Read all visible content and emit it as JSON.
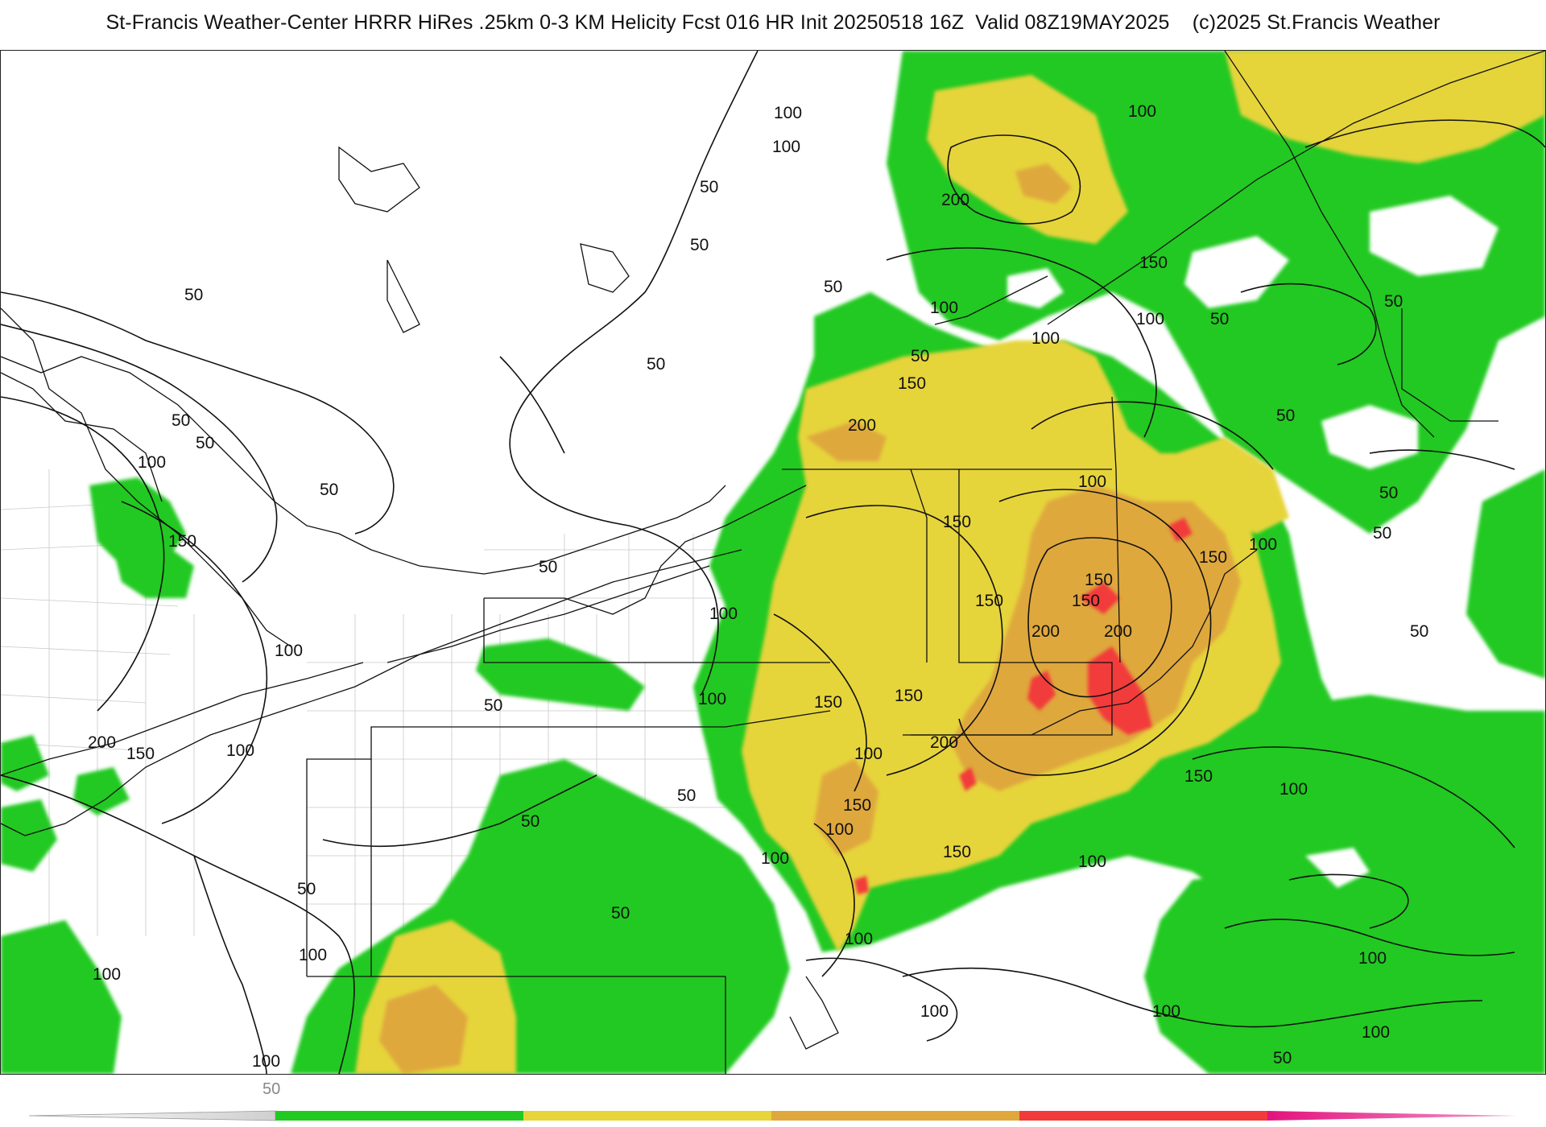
{
  "title": "St-Francis Weather-Center HRRR HiRes .25km 0-3 KM Helicity Fcst 016 HR Init 20250518 16Z  Valid 08Z19MAY2025    (c)2025 St.Francis Weather",
  "colors": {
    "band_50_100": "#22c922",
    "band_100_150": "#e6d43a",
    "band_150_200": "#dfa83c",
    "band_200_250": "#f23a3a",
    "band_250_plus": "#e2127e",
    "low_band_fade": "#d7d7d7"
  },
  "colorbar": {
    "label": "50",
    "bands": [
      "#ffffff",
      "#22c922",
      "#e6d43a",
      "#dfa83c",
      "#f23a3a",
      "#e2127e"
    ]
  },
  "contour_labels": [
    "100",
    "100",
    "200",
    "50",
    "50",
    "150",
    "100",
    "100",
    "50",
    "100",
    "50",
    "150",
    "200",
    "50",
    "50",
    "50",
    "100",
    "50",
    "150",
    "150",
    "100",
    "50",
    "50",
    "150",
    "150",
    "150",
    "200",
    "200",
    "100",
    "150",
    "50",
    "100",
    "200",
    "150",
    "100",
    "50",
    "150",
    "50",
    "100",
    "150",
    "50",
    "100",
    "100",
    "150",
    "100",
    "100",
    "50",
    "100",
    "100",
    "100",
    "100",
    "100",
    "100",
    "100"
  ]
}
